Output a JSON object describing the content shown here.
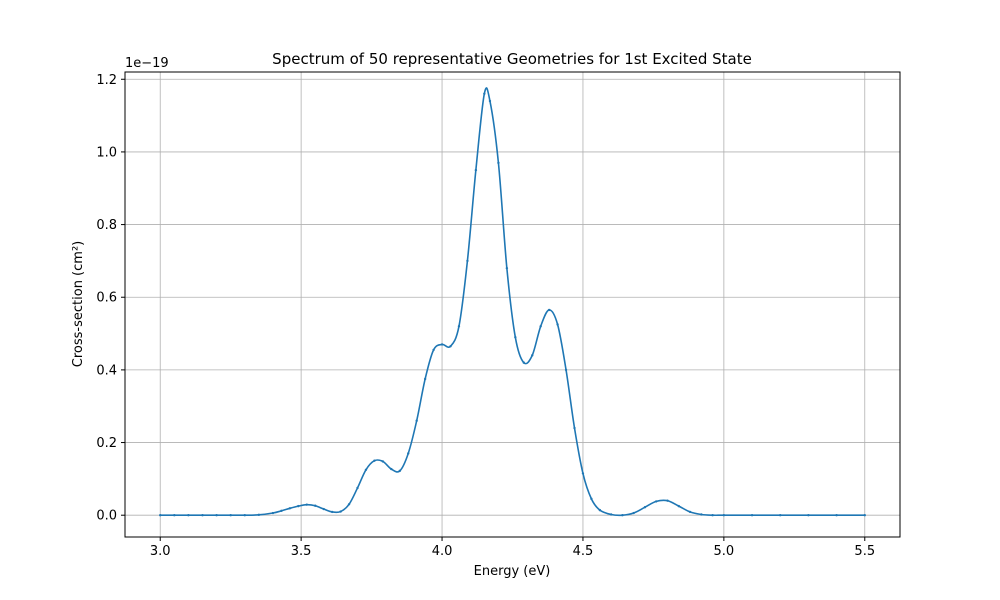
{
  "chart_data": {
    "type": "line",
    "title": "Spectrum of 50 representative Geometries for 1st Excited State",
    "xlabel": "Energy (eV)",
    "ylabel": "Cross-section (cm²)",
    "y_offset_label": "1e−19",
    "xlim": [
      2.875,
      5.625
    ],
    "ylim": [
      -0.06,
      1.22
    ],
    "x_ticks": [
      3.0,
      3.5,
      4.0,
      4.5,
      5.0,
      5.5
    ],
    "x_tick_labels": [
      "3.0",
      "3.5",
      "4.0",
      "4.5",
      "5.0",
      "5.5"
    ],
    "y_ticks": [
      0.0,
      0.2,
      0.4,
      0.6,
      0.8,
      1.0,
      1.2
    ],
    "y_tick_labels": [
      "0.0",
      "0.2",
      "0.4",
      "0.6",
      "0.8",
      "1.0",
      "1.2"
    ],
    "grid": true,
    "line_color": "#1f77b4",
    "grid_color": "#b0b0b0",
    "series": [
      {
        "markers": "small-dots",
        "x": [
          3.0,
          3.05,
          3.1,
          3.15,
          3.2,
          3.25,
          3.3,
          3.35,
          3.4,
          3.43,
          3.46,
          3.49,
          3.52,
          3.55,
          3.58,
          3.61,
          3.64,
          3.67,
          3.7,
          3.73,
          3.76,
          3.79,
          3.82,
          3.85,
          3.88,
          3.91,
          3.94,
          3.97,
          4.0,
          4.03,
          4.06,
          4.09,
          4.12,
          4.15,
          4.17,
          4.2,
          4.23,
          4.26,
          4.29,
          4.32,
          4.35,
          4.38,
          4.41,
          4.44,
          4.47,
          4.5,
          4.53,
          4.56,
          4.6,
          4.64,
          4.68,
          4.72,
          4.76,
          4.8,
          4.84,
          4.88,
          4.92,
          4.96,
          5.0,
          5.1,
          5.2,
          5.3,
          5.4,
          5.5
        ],
        "y": [
          0.0,
          0.0,
          0.0,
          0.0,
          0.0,
          0.0,
          0.0,
          0.001,
          0.006,
          0.012,
          0.019,
          0.025,
          0.029,
          0.026,
          0.017,
          0.009,
          0.01,
          0.03,
          0.075,
          0.125,
          0.15,
          0.148,
          0.127,
          0.122,
          0.17,
          0.26,
          0.375,
          0.455,
          0.47,
          0.465,
          0.52,
          0.7,
          0.95,
          1.16,
          1.14,
          0.97,
          0.68,
          0.49,
          0.42,
          0.44,
          0.52,
          0.565,
          0.525,
          0.4,
          0.24,
          0.115,
          0.045,
          0.014,
          0.002,
          0.0,
          0.006,
          0.022,
          0.038,
          0.04,
          0.025,
          0.009,
          0.002,
          0.0,
          0.0,
          0.0,
          0.0,
          0.0,
          0.0,
          0.0
        ]
      }
    ]
  }
}
